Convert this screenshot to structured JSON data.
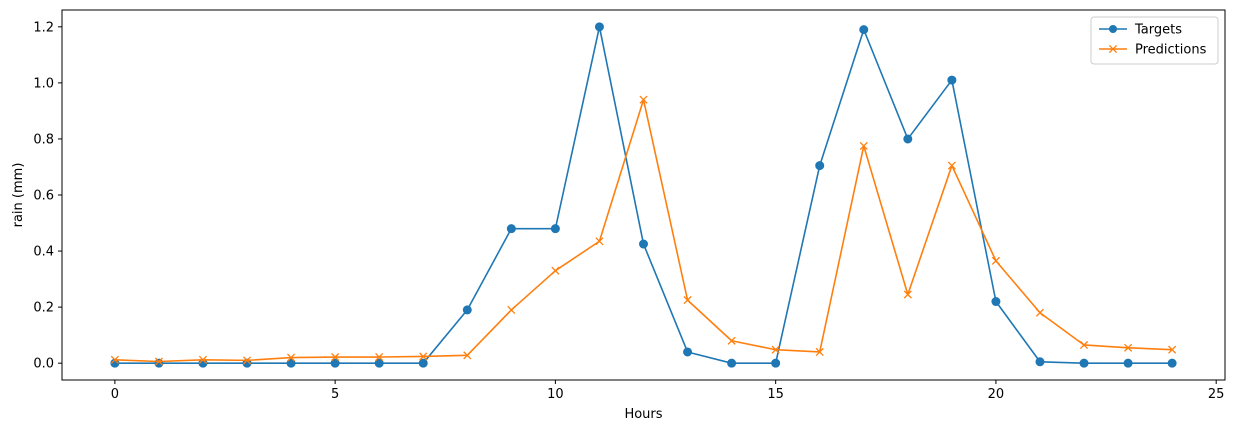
{
  "chart_data": {
    "type": "line",
    "title": "",
    "xlabel": "Hours",
    "ylabel": "rain (mm)",
    "xlim": [
      -1.2,
      25.2
    ],
    "ylim": [
      -0.06,
      1.26
    ],
    "xticks": [
      0,
      5,
      10,
      15,
      20,
      25
    ],
    "xtick_labels": [
      "0",
      "5",
      "10",
      "15",
      "20",
      "25"
    ],
    "yticks": [
      0.0,
      0.2,
      0.4,
      0.6,
      0.8,
      1.0,
      1.2
    ],
    "ytick_labels": [
      "0.0",
      "0.2",
      "0.4",
      "0.6",
      "0.8",
      "1.0",
      "1.2"
    ],
    "grid": false,
    "legend_position": "top-right",
    "x": [
      0,
      1,
      2,
      3,
      4,
      5,
      6,
      7,
      8,
      9,
      10,
      11,
      12,
      13,
      14,
      15,
      16,
      17,
      18,
      19,
      20,
      21,
      22,
      23,
      24
    ],
    "series": [
      {
        "name": "Targets",
        "color": "#1f77b4",
        "marker": "circle",
        "values": [
          0.0,
          0.0,
          0.0,
          0.0,
          0.0,
          0.0,
          0.0,
          0.0,
          0.19,
          0.48,
          0.48,
          1.2,
          0.425,
          0.04,
          0.0,
          0.0,
          0.705,
          1.19,
          0.8,
          1.01,
          0.22,
          0.005,
          0.0,
          0.0,
          0.0
        ]
      },
      {
        "name": "Predictions",
        "color": "#ff7f0e",
        "marker": "x",
        "values": [
          0.012,
          0.006,
          0.012,
          0.01,
          0.02,
          0.022,
          0.022,
          0.024,
          0.028,
          0.19,
          0.33,
          0.435,
          0.94,
          0.225,
          0.08,
          0.048,
          0.04,
          0.775,
          0.245,
          0.705,
          0.365,
          0.18,
          0.065,
          0.055,
          0.048
        ]
      }
    ]
  }
}
